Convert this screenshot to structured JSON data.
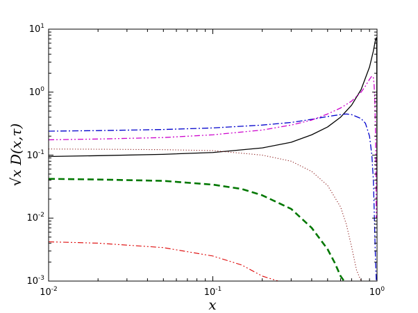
{
  "chart_data": {
    "type": "line",
    "title": "",
    "xlabel": "x",
    "ylabel": "√x D(x,τ)",
    "xscale": "log",
    "yscale": "log",
    "xlim": [
      0.01,
      1.0
    ],
    "ylim": [
      0.001,
      10
    ],
    "grid": false,
    "legend": "none",
    "x_ticks": [
      {
        "base": "10",
        "exp": "-2"
      },
      {
        "base": "10",
        "exp": "-1"
      },
      {
        "base": "10",
        "exp": "0"
      }
    ],
    "y_ticks": [
      {
        "base": "10",
        "exp": "-3"
      },
      {
        "base": "10",
        "exp": "-2"
      },
      {
        "base": "10",
        "exp": "-1"
      },
      {
        "base": "10",
        "exp": "0"
      },
      {
        "base": "10",
        "exp": "1"
      }
    ],
    "series": [
      {
        "color": "#000000",
        "dash": "solid",
        "width": 1.3,
        "x": [
          0.01,
          0.02,
          0.05,
          0.1,
          0.2,
          0.3,
          0.4,
          0.5,
          0.6,
          0.7,
          0.8,
          0.9,
          0.95,
          0.98,
          0.99,
          0.995,
          0.997,
          0.998,
          0.999
        ],
        "y": [
          0.095,
          0.098,
          0.103,
          0.11,
          0.13,
          0.16,
          0.21,
          0.28,
          0.4,
          0.62,
          1.1,
          2.5,
          4.5,
          6.9,
          7.3,
          6.5,
          2.0,
          0.4,
          0.03
        ]
      },
      {
        "color": "#0000cc",
        "dash": "dashdot",
        "width": 1.3,
        "x": [
          0.01,
          0.02,
          0.05,
          0.1,
          0.2,
          0.3,
          0.4,
          0.5,
          0.6,
          0.65,
          0.7,
          0.8,
          0.85,
          0.9,
          0.93,
          0.95,
          0.96,
          0.97,
          0.98,
          0.99
        ],
        "y": [
          0.24,
          0.245,
          0.255,
          0.27,
          0.3,
          0.33,
          0.37,
          0.41,
          0.44,
          0.45,
          0.44,
          0.38,
          0.32,
          0.2,
          0.1,
          0.04,
          0.015,
          0.005,
          0.002,
          0.001
        ]
      },
      {
        "color": "#cc00cc",
        "dash": "dashdotdot",
        "width": 1.3,
        "x": [
          0.01,
          0.02,
          0.05,
          0.1,
          0.2,
          0.3,
          0.4,
          0.5,
          0.6,
          0.7,
          0.8,
          0.85,
          0.9,
          0.93,
          0.95,
          0.96,
          0.97,
          0.98,
          0.99
        ],
        "y": [
          0.175,
          0.18,
          0.19,
          0.21,
          0.25,
          0.3,
          0.36,
          0.45,
          0.56,
          0.72,
          1.0,
          1.25,
          1.6,
          1.8,
          1.7,
          1.3,
          0.7,
          0.2,
          0.01
        ]
      },
      {
        "color": "#8b1a1a",
        "dash": "dotted",
        "width": 1.1,
        "x": [
          0.01,
          0.02,
          0.05,
          0.1,
          0.2,
          0.3,
          0.4,
          0.5,
          0.6,
          0.65,
          0.7,
          0.75,
          0.8
        ],
        "y": [
          0.125,
          0.124,
          0.122,
          0.118,
          0.1,
          0.08,
          0.055,
          0.033,
          0.015,
          0.008,
          0.0035,
          0.0015,
          0.001
        ]
      },
      {
        "color": "#007700",
        "dash": "dashed",
        "width": 2.6,
        "x": [
          0.01,
          0.02,
          0.05,
          0.1,
          0.15,
          0.2,
          0.3,
          0.4,
          0.5,
          0.55,
          0.6,
          0.63
        ],
        "y": [
          0.042,
          0.041,
          0.039,
          0.034,
          0.029,
          0.023,
          0.014,
          0.007,
          0.0032,
          0.002,
          0.0012,
          0.001
        ]
      },
      {
        "color": "#dd0000",
        "dash": "dashdotdot",
        "width": 1.1,
        "x": [
          0.01,
          0.02,
          0.05,
          0.1,
          0.15,
          0.2,
          0.25
        ],
        "y": [
          0.0042,
          0.004,
          0.0034,
          0.0025,
          0.0018,
          0.0012,
          0.001
        ]
      }
    ]
  }
}
